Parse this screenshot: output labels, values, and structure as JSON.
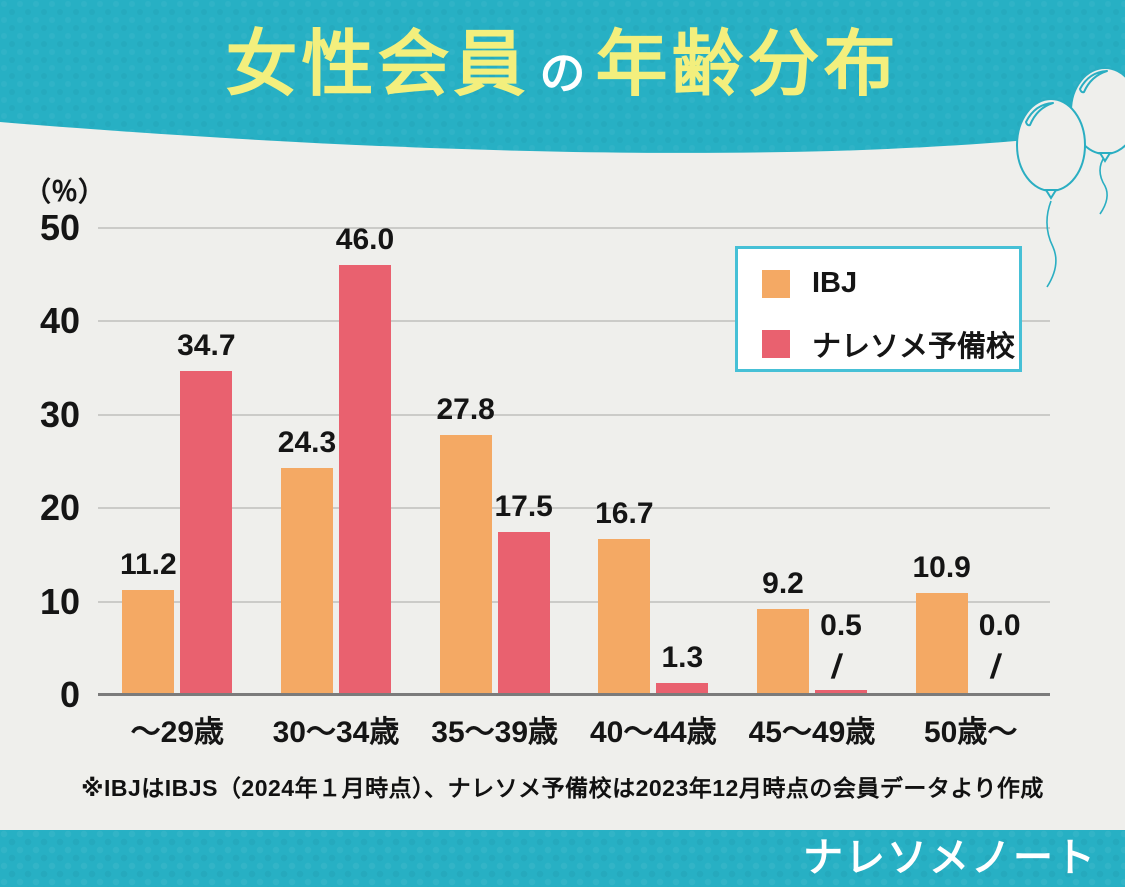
{
  "header": {
    "title_part1": "女性会員",
    "title_particle": "の",
    "title_part2": "年齢分布"
  },
  "y_axis": {
    "unit_label": "（％）",
    "ticks": [
      "50",
      "40",
      "30",
      "20",
      "10",
      "0"
    ]
  },
  "chart_data": {
    "type": "bar",
    "categories": [
      "～29歳",
      "30～34歳",
      "35～39歳",
      "40～44歳",
      "45～49歳",
      "50歳～"
    ],
    "series": [
      {
        "name": "IBJ",
        "color": "#f4a964",
        "values": [
          11.2,
          24.3,
          27.8,
          16.7,
          9.2,
          10.9
        ]
      },
      {
        "name": "ナレソメ予備校",
        "color": "#e9616f",
        "values": [
          34.7,
          46.0,
          17.5,
          1.3,
          0.5,
          0.0
        ]
      }
    ],
    "title": "女性会員の年齢分布",
    "xlabel": "",
    "ylabel": "（％）",
    "ylim": [
      0,
      50
    ],
    "grid_step": 10,
    "grid": true,
    "legend_position": "top-right",
    "value_labels": true,
    "leader_glyph": "/",
    "leader_threshold": 0.5
  },
  "legend": {
    "items": [
      {
        "label": "IBJ",
        "color": "#f4a964"
      },
      {
        "label": "ナレソメ予備校",
        "color": "#e9616f"
      }
    ]
  },
  "footnote": "※IBJはIBJS（2024年１月時点）、ナレソメ予備校は2023年12月時点の会員データより作成",
  "footer": {
    "brand": "ナレソメノート"
  },
  "colors": {
    "teal": "#27b0c4",
    "background": "#efefec",
    "title_yellow": "#f3ef7d",
    "title_particle_white": "#ffffff",
    "bar_orange": "#f4a964",
    "bar_pink": "#e9616f",
    "legend_border": "#46c0d6",
    "gridline": "#cbcbc8",
    "axis_line": "#7b7b7b",
    "text": "#151515",
    "balloon_outline": "#2aaec2"
  }
}
